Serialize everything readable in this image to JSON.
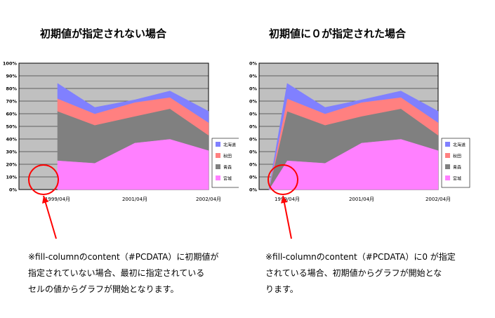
{
  "titles": {
    "left": "初期値が指定されない場合",
    "right": "初期値に０が指定された場合"
  },
  "notes": {
    "left": [
      "※fill-columnのcontent（#PCDATA）に初期値が",
      "指定されていない場合、最初に指定されている",
      "セルの値からグラフが開始となります。"
    ],
    "right": [
      "※fill-columnのcontent（#PCDATA）に0 が指定",
      "されている場合、初期値からグラフが開始とな",
      "ります。"
    ]
  },
  "colors": {
    "plot_bg": "#c0c0c0",
    "grid": "#000000",
    "highlight": "#ff0000"
  },
  "chart_data": [
    {
      "type": "area",
      "stacked": true,
      "title": "初期値が指定されない場合",
      "x": [
        "1999/04月",
        "",
        "2001/04月",
        "",
        "2002/04月"
      ],
      "x_tick_labels": [
        "1999/04月",
        "2001/04月",
        "2002/04月"
      ],
      "ylim": [
        0,
        100
      ],
      "y_ticks": [
        "0%",
        "10%",
        "20%",
        "30%",
        "40%",
        "50%",
        "60%",
        "70%",
        "80%",
        "90%",
        "100%"
      ],
      "grid": true,
      "legend": "right",
      "series": [
        {
          "name": "宮城",
          "color": "#ff80ff",
          "values": [
            23,
            21,
            37,
            40,
            31
          ]
        },
        {
          "name": "青森",
          "color": "#808080",
          "values": [
            39,
            30,
            21,
            24,
            12
          ]
        },
        {
          "name": "秋田",
          "color": "#ff8080",
          "values": [
            10,
            9,
            11,
            9,
            10
          ]
        },
        {
          "name": "北海道",
          "color": "#8080ff",
          "values": [
            12,
            5,
            2,
            5,
            9
          ]
        }
      ]
    },
    {
      "type": "area",
      "stacked": true,
      "title": "初期値に０が指定された場合",
      "x": [
        "",
        "1999/04月",
        "",
        "2001/04月",
        "",
        "2002/04月"
      ],
      "x_tick_labels": [
        "1999/04月",
        "2001/04月",
        "2002/04月"
      ],
      "ylim": [
        0,
        100
      ],
      "y_ticks": [
        "0%",
        "10%",
        "20%",
        "30%",
        "40%",
        "50%",
        "60%",
        "70%",
        "80%",
        "90%",
        "100%"
      ],
      "grid": true,
      "legend": "right",
      "series": [
        {
          "name": "宮城",
          "color": "#ff80ff",
          "values": [
            0,
            23,
            21,
            37,
            40,
            31
          ]
        },
        {
          "name": "青森",
          "color": "#808080",
          "values": [
            0,
            39,
            30,
            21,
            24,
            12
          ]
        },
        {
          "name": "秋田",
          "color": "#ff8080",
          "values": [
            0,
            10,
            9,
            11,
            9,
            10
          ]
        },
        {
          "name": "北海道",
          "color": "#8080ff",
          "values": [
            0,
            12,
            5,
            2,
            5,
            9
          ]
        }
      ]
    }
  ]
}
